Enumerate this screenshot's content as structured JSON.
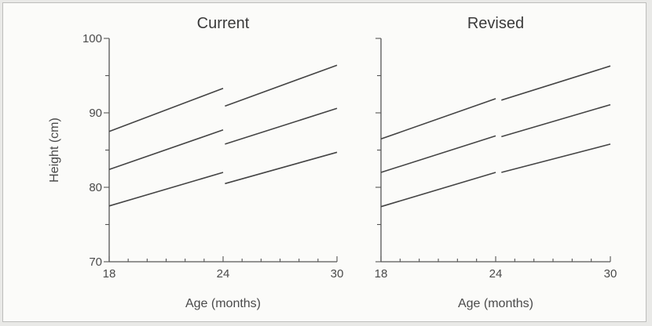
{
  "chart_data": [
    {
      "type": "line",
      "title": "Current",
      "xlabel": "Age (months)",
      "ylabel": "Height (cm)",
      "xlim": [
        18,
        30
      ],
      "ylim": [
        70,
        100
      ],
      "xticks": [
        "18",
        "24",
        "30"
      ],
      "yticks": [
        "70",
        "80",
        "90",
        "100"
      ],
      "series": [
        {
          "x": [
            18,
            24
          ],
          "y": [
            87.5,
            93.3
          ]
        },
        {
          "x": [
            24.1,
            30
          ],
          "y": [
            90.9,
            96.4
          ]
        },
        {
          "x": [
            18,
            24
          ],
          "y": [
            82.4,
            87.7
          ]
        },
        {
          "x": [
            24.1,
            30
          ],
          "y": [
            85.8,
            90.6
          ]
        },
        {
          "x": [
            18,
            24
          ],
          "y": [
            77.5,
            82.0
          ]
        },
        {
          "x": [
            24.1,
            30
          ],
          "y": [
            80.5,
            84.7
          ]
        }
      ]
    },
    {
      "type": "line",
      "title": "Revised",
      "xlabel": "Age (months)",
      "ylabel": "",
      "xlim": [
        18,
        30
      ],
      "ylim": [
        70,
        100
      ],
      "xticks": [
        "18",
        "24",
        "30"
      ],
      "yticks": [],
      "series": [
        {
          "x": [
            18,
            24
          ],
          "y": [
            86.5,
            91.9
          ]
        },
        {
          "x": [
            24.3,
            30
          ],
          "y": [
            91.7,
            96.3
          ]
        },
        {
          "x": [
            18,
            24
          ],
          "y": [
            82.0,
            86.9
          ]
        },
        {
          "x": [
            24.3,
            30
          ],
          "y": [
            86.8,
            91.1
          ]
        },
        {
          "x": [
            18,
            24
          ],
          "y": [
            77.4,
            82.0
          ]
        },
        {
          "x": [
            24.3,
            30
          ],
          "y": [
            82.0,
            85.8
          ]
        }
      ]
    }
  ]
}
